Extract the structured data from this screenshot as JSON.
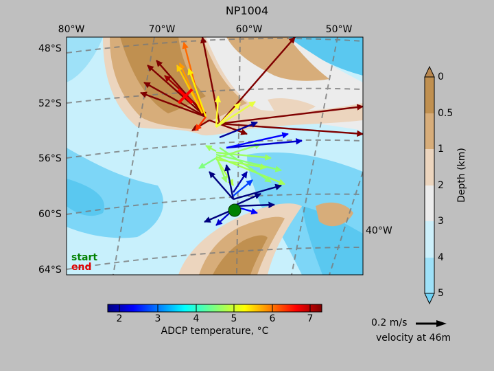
{
  "title": "NP1004",
  "map": {
    "lon_labels": [
      "80°W",
      "70°W",
      "60°W",
      "50°W"
    ],
    "lat_labels": [
      "48°S",
      "52°S",
      "56°S",
      "60°S",
      "64°S"
    ],
    "side_lon_label": "40°W",
    "start_label": "start",
    "end_label": "end",
    "start_color": "#008000",
    "end_color": "#ff0000",
    "land_color": "#b8874f",
    "shelf_color": "#efd7bf",
    "deep_color": "#5ac8f0"
  },
  "temp_colorbar": {
    "ticks": [
      "2",
      "3",
      "4",
      "5",
      "6",
      "7"
    ],
    "range": [
      1.7,
      7.3
    ],
    "label": "ADCP temperature, °C"
  },
  "depth_colorbar": {
    "ticks": [
      "0",
      "0.5",
      "1",
      "2",
      "3",
      "4",
      "5"
    ],
    "label": "Depth (km)",
    "colors": [
      "#c09050",
      "#d7ad7a",
      "#ecd5be",
      "#ececec",
      "#cdf0fb",
      "#9ee1f8",
      "#70d2f5"
    ]
  },
  "scale": {
    "value_label": "0.2 m/s",
    "depth_label": "velocity at 46m"
  }
}
